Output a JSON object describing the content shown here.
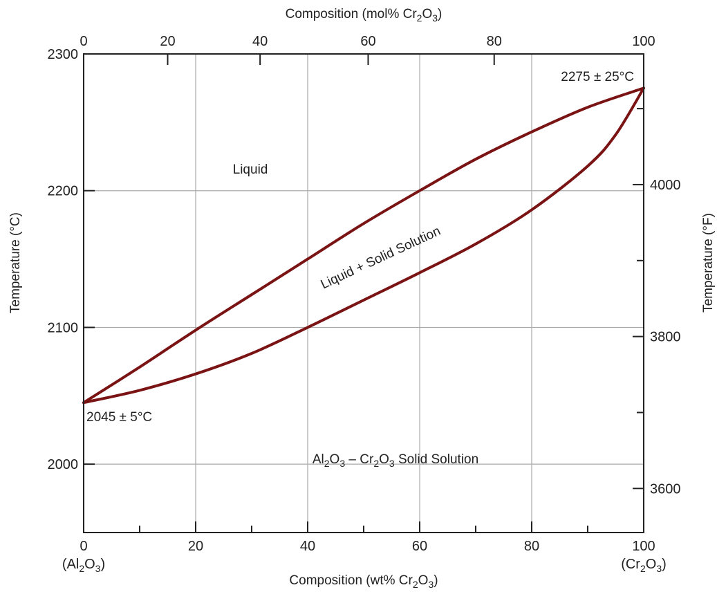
{
  "chart_data": {
    "type": "line",
    "title": "",
    "xlabel": "Composition (wt% Cr2O3)",
    "xlabel_parts": [
      "Composition (wt% Cr",
      "2",
      "O",
      "3",
      ")"
    ],
    "x2label": "Composition (mol% Cr2O3)",
    "x2label_parts": [
      "Composition (mol% Cr",
      "2",
      "O",
      "3",
      ")"
    ],
    "ylabel": "Temperature (°C)",
    "y2label": "Temperature (°F)",
    "xlim": [
      0,
      100
    ],
    "ylim": [
      1950,
      2300
    ],
    "y2lim": [
      3542,
      4172
    ],
    "x_ticks": [
      "0",
      "20",
      "40",
      "60",
      "80",
      "100"
    ],
    "x_minor_ticks": [
      10,
      30,
      50,
      70,
      90
    ],
    "x2_ticks": [
      {
        "label": "0",
        "value": 0
      },
      {
        "label": "20",
        "value": 15
      },
      {
        "label": "40",
        "value": 31.5
      },
      {
        "label": "60",
        "value": 50.8
      },
      {
        "label": "80",
        "value": 73.3
      },
      {
        "label": "100",
        "value": 100
      }
    ],
    "y_ticks": [
      "2000",
      "2100",
      "2200",
      "2300"
    ],
    "y2_ticks": [
      "3600",
      "3800",
      "4000"
    ],
    "y2_minor_ticks": [
      3700,
      3900,
      4100
    ],
    "x_end_labels": {
      "left_parts": [
        "(Al",
        "2",
        "O",
        "3",
        ")"
      ],
      "right_parts": [
        "(Cr",
        "2",
        "O",
        "3",
        ")"
      ]
    },
    "series": [
      {
        "role": "liquidus",
        "x": [
          0,
          10,
          20,
          30,
          40,
          50,
          60,
          70,
          80,
          90,
          100
        ],
        "y": [
          2045,
          2071,
          2098,
          2124,
          2150,
          2176,
          2200,
          2223,
          2243,
          2261,
          2275
        ]
      },
      {
        "role": "solidus",
        "x": [
          0,
          10,
          20,
          30,
          40,
          50,
          60,
          70,
          80,
          90,
          95,
          100
        ],
        "y": [
          2045,
          2054,
          2066,
          2081,
          2100,
          2120,
          2140,
          2161,
          2186,
          2218,
          2241,
          2275
        ]
      }
    ],
    "annotations": {
      "liquid": "Liquid",
      "two_phase": "Liquid + Solid Solution",
      "solid_parts": [
        "Al",
        "2",
        "O",
        "3",
        " – Cr",
        "2",
        "O",
        "3",
        " Solid Solution"
      ],
      "melt_al2o3": "2045 ± 5°C",
      "melt_cr2o3": "2275 ± 25°C"
    },
    "grid": true,
    "colors": {
      "curve": "#7a1414",
      "grid": "#a9a9a9",
      "axis": "#222222"
    }
  }
}
